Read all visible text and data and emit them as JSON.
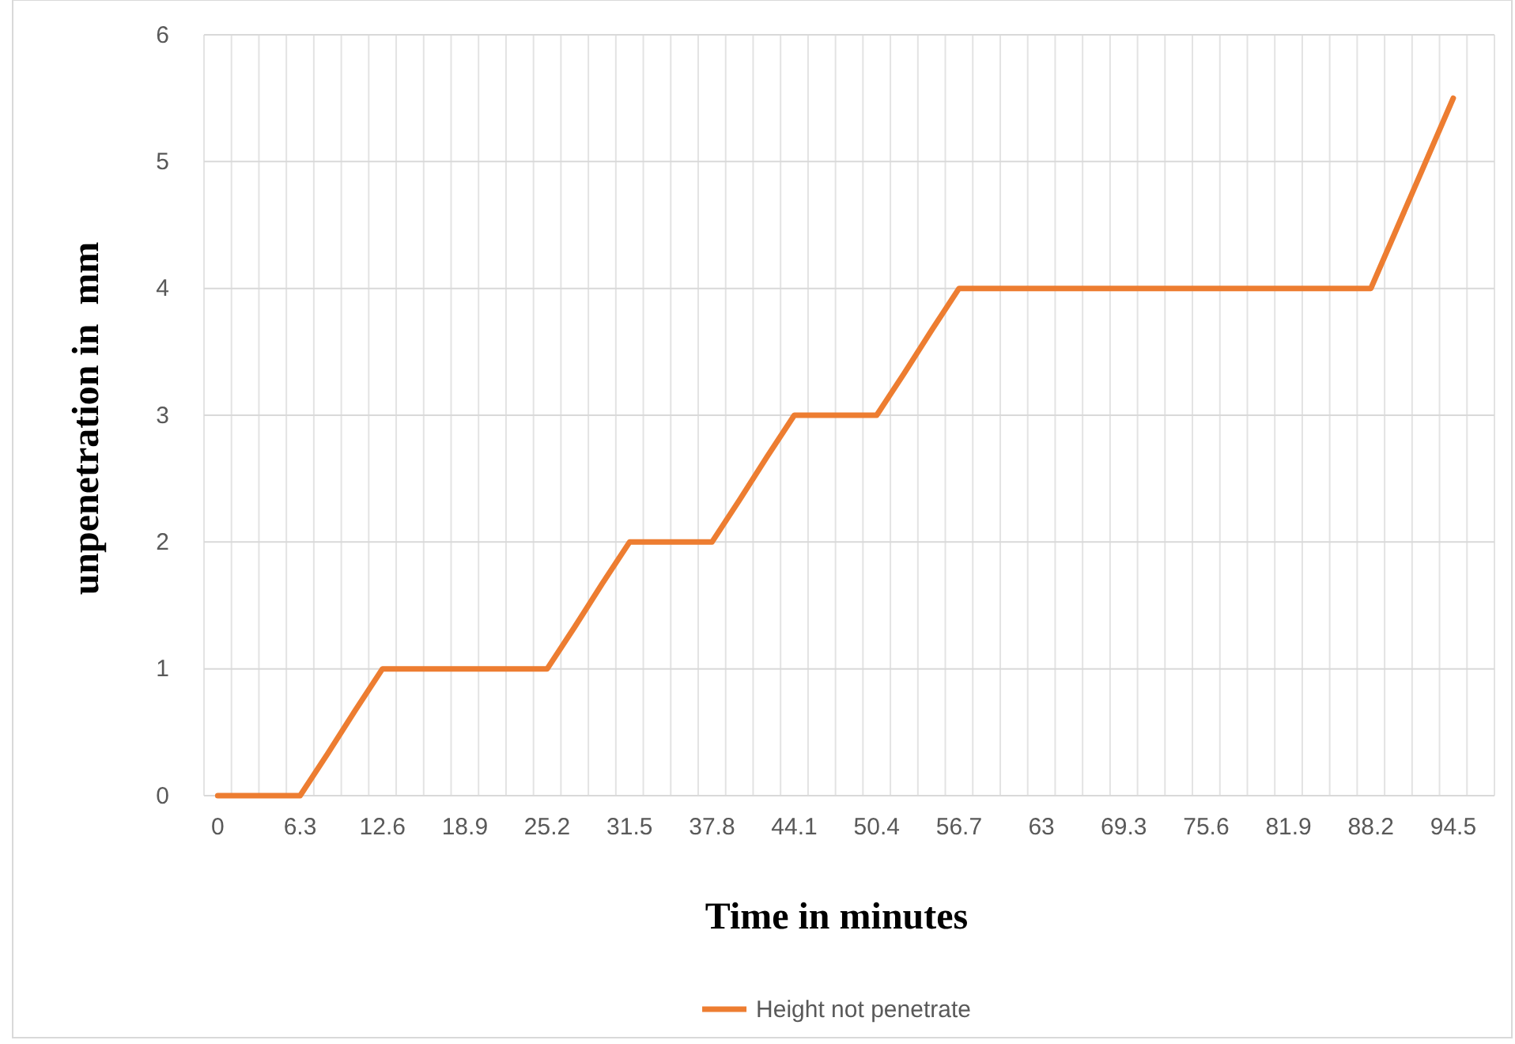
{
  "chart_data": {
    "type": "line",
    "xlabel": "Time in minutes",
    "ylabel": "unpenetration in  mm",
    "categories": [
      "0",
      null,
      null,
      "6.3",
      null,
      null,
      "12.6",
      null,
      null,
      "18.9",
      null,
      null,
      "25.2",
      null,
      null,
      "31.5",
      null,
      null,
      "37.8",
      null,
      null,
      "44.1",
      null,
      null,
      "50.4",
      null,
      null,
      "56.7",
      null,
      null,
      "63",
      null,
      null,
      "69.3",
      null,
      null,
      "75.6",
      null,
      null,
      "81.9",
      null,
      null,
      "88.2",
      null,
      null,
      "94.5",
      null
    ],
    "series": [
      {
        "name": "Height not penetrate",
        "color": "#ed7d31",
        "values": [
          0,
          0,
          0,
          0,
          0.33,
          0.67,
          1,
          1,
          1,
          1,
          1,
          1,
          1,
          1.33,
          1.67,
          2,
          2,
          2,
          2,
          2.33,
          2.67,
          3,
          3,
          3,
          3,
          3.33,
          3.67,
          4,
          4,
          4,
          4,
          4,
          4,
          4,
          4,
          4,
          4,
          4,
          4,
          4,
          4,
          4,
          4,
          4.5,
          5,
          5.5,
          null
        ]
      }
    ],
    "ylim": [
      0,
      6
    ],
    "yticks": [
      0,
      1,
      2,
      3,
      4,
      5,
      6
    ],
    "grid": true,
    "legend": "bottom",
    "marker": "none",
    "line_style": "solid"
  }
}
